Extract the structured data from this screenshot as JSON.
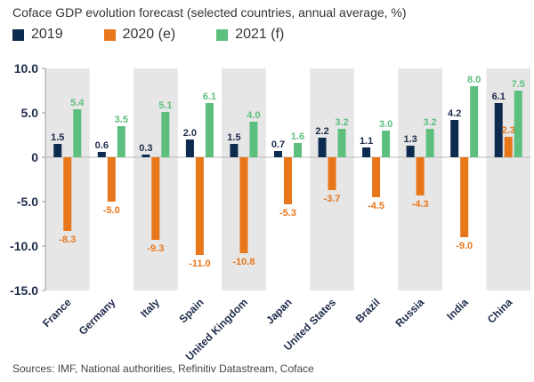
{
  "chart_data": {
    "type": "bar",
    "title": "Coface GDP evolution forecast (selected countries, annual average, %)",
    "categories": [
      "France",
      "Germany",
      "Italy",
      "Spain",
      "United Kingdom",
      "Japan",
      "United States",
      "Brazil",
      "Russia",
      "India",
      "China"
    ],
    "series": [
      {
        "name": "2019",
        "color": "#0d2b4e",
        "values": [
          1.5,
          0.6,
          0.3,
          2.0,
          1.5,
          0.7,
          2.2,
          1.1,
          1.3,
          4.2,
          6.1
        ],
        "labels": [
          "1.5",
          "0.6",
          "0.3",
          "2.0",
          "1.5",
          "0.7",
          "2.2",
          "1.1",
          "1.3",
          "4.2",
          "6.1"
        ]
      },
      {
        "name": "2020 (e)",
        "color": "#e8761b",
        "values": [
          -8.3,
          -5.0,
          -9.3,
          -11.0,
          -10.8,
          -5.3,
          -3.7,
          -4.5,
          -4.3,
          -9.0,
          2.3
        ],
        "labels": [
          "-8.3",
          "-5.0",
          "-9.3",
          "-11.0",
          "-10.8",
          "-5.3",
          "-3.7",
          "-4.5",
          "-4.3",
          "-9.0",
          "2.3"
        ]
      },
      {
        "name": "2021 (f)",
        "color": "#5dbf7e",
        "values": [
          5.4,
          3.5,
          5.1,
          6.1,
          4.0,
          1.6,
          3.2,
          3.0,
          3.2,
          8.0,
          7.5
        ],
        "labels": [
          "5.4",
          "3.5",
          "5.1",
          "6.1",
          "4.0",
          "1.6",
          "3.2",
          "3.0",
          "3.2",
          "8.0",
          "7.5"
        ]
      }
    ],
    "ylim": [
      -15,
      10
    ],
    "yticks": [
      10,
      5,
      0,
      -5,
      -10,
      -15
    ],
    "ytick_labels": [
      "10.0",
      "5.0",
      "0",
      "-5.0",
      "-10.0",
      "-15.0"
    ],
    "xlabel": "",
    "ylabel": "",
    "legend_position": "top-left",
    "background_band_color": "#e6e6e6"
  },
  "footer": {
    "source": "Sources: IMF, National authorities, Refinitiv Datastream, Coface"
  }
}
